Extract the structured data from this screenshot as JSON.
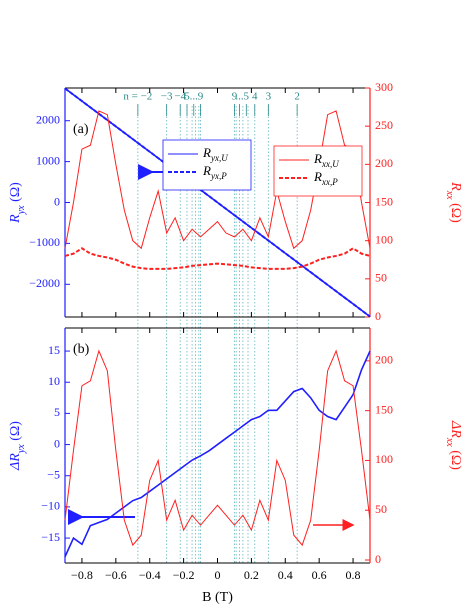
{
  "chart_data": [
    {
      "type": "line",
      "panel_label": "(a)",
      "x": [
        -0.9,
        -0.85,
        -0.8,
        -0.75,
        -0.7,
        -0.65,
        -0.6,
        -0.55,
        -0.5,
        -0.45,
        -0.4,
        -0.35,
        -0.3,
        -0.25,
        -0.2,
        -0.15,
        -0.1,
        -0.05,
        0,
        0.05,
        0.1,
        0.15,
        0.2,
        0.25,
        0.3,
        0.35,
        0.4,
        0.45,
        0.5,
        0.55,
        0.6,
        0.65,
        0.7,
        0.75,
        0.8,
        0.85,
        0.9
      ],
      "xlim": [
        -0.9,
        0.9
      ],
      "xticks": [
        -0.8,
        -0.6,
        -0.4,
        -0.2,
        0,
        0.2,
        0.4,
        0.6,
        0.8
      ],
      "xtick_labels": false,
      "ylim": [
        -2800,
        2800
      ],
      "yticks": [
        {
          "value": -2000,
          "label": "−2000"
        },
        {
          "value": -1000,
          "label": "−1000"
        },
        0,
        1000,
        2000
      ],
      "y2lim": [
        0,
        300
      ],
      "y2ticks": [
        0,
        50,
        100,
        150,
        200,
        250,
        300
      ],
      "ylabel": [
        "R",
        "yx",
        " (Ω)"
      ],
      "y2label": [
        "R",
        "xx",
        " (Ω)"
      ],
      "levels": [
        -0.47,
        -0.3,
        -0.22,
        -0.18,
        -0.15,
        -0.13,
        -0.11,
        -0.1,
        0.1,
        0.11,
        0.13,
        0.15,
        0.18,
        0.22,
        0.3,
        0.47
      ],
      "level_labels": [
        {
          "label": "n = −2",
          "x": -0.47
        },
        {
          "label": "−3",
          "x": -0.3
        },
        {
          "label": "−4",
          "x": -0.22
        },
        {
          "label": "5",
          "x": -0.18
        },
        {
          "label": "...",
          "x": -0.14
        },
        {
          "label": "9",
          "x": -0.1
        },
        {
          "label": "9",
          "x": 0.1
        },
        {
          "label": "...",
          "x": 0.13
        },
        {
          "label": "5",
          "x": 0.17
        },
        {
          "label": "4",
          "x": 0.22
        },
        {
          "label": "3",
          "x": 0.3
        },
        {
          "label": "2",
          "x": 0.47
        }
      ],
      "series": [
        {
          "name": "Ryx,U",
          "color": "#1f1fff",
          "dash": false,
          "axis": "y",
          "legend": 0,
          "values": [
            2790,
            2635,
            2480,
            2325,
            2170,
            2015,
            1860,
            1705,
            1550,
            1395,
            1240,
            1085,
            930,
            775,
            620,
            465,
            310,
            155,
            0,
            -155,
            -310,
            -465,
            -620,
            -775,
            -930,
            -1085,
            -1240,
            -1395,
            -1550,
            -1705,
            -1860,
            -2015,
            -2170,
            -2325,
            -2480,
            -2635,
            -2790
          ]
        },
        {
          "name": "Ryx,P",
          "color": "#1f1fff",
          "dash": true,
          "axis": "y",
          "legend": 0,
          "values": [
            2790,
            2635,
            2480,
            2325,
            2170,
            2015,
            1860,
            1705,
            1550,
            1395,
            1240,
            1085,
            930,
            775,
            620,
            465,
            310,
            155,
            0,
            -155,
            -310,
            -465,
            -620,
            -775,
            -930,
            -1085,
            -1240,
            -1395,
            -1550,
            -1705,
            -1860,
            -2015,
            -2170,
            -2325,
            -2480,
            -2635,
            -2790
          ]
        },
        {
          "name": "Rxx,U",
          "color": "#ff2020",
          "dash": false,
          "axis": "y2",
          "legend": 1,
          "values": [
            90,
            150,
            220,
            225,
            270,
            265,
            200,
            140,
            100,
            90,
            130,
            165,
            110,
            130,
            100,
            115,
            105,
            115,
            125,
            110,
            105,
            115,
            100,
            130,
            105,
            165,
            125,
            90,
            100,
            140,
            200,
            265,
            270,
            225,
            220,
            150,
            90
          ]
        },
        {
          "name": "Rxx,P",
          "color": "#ff2020",
          "dash": true,
          "axis": "y2",
          "legend": 1,
          "values": [
            80,
            83,
            90,
            83,
            80,
            78,
            75,
            70,
            66,
            64,
            63,
            63,
            63,
            64,
            65,
            67,
            68,
            69,
            70,
            69,
            68,
            67,
            65,
            64,
            63,
            63,
            63,
            64,
            66,
            70,
            75,
            78,
            80,
            83,
            90,
            83,
            80
          ]
        }
      ]
    },
    {
      "type": "line",
      "panel_label": "(b)",
      "x": [
        -0.9,
        -0.85,
        -0.8,
        -0.75,
        -0.7,
        -0.65,
        -0.6,
        -0.55,
        -0.5,
        -0.45,
        -0.4,
        -0.35,
        -0.3,
        -0.25,
        -0.2,
        -0.15,
        -0.1,
        -0.05,
        0,
        0.05,
        0.1,
        0.15,
        0.2,
        0.25,
        0.3,
        0.35,
        0.4,
        0.45,
        0.5,
        0.55,
        0.6,
        0.65,
        0.7,
        0.75,
        0.8,
        0.85,
        0.9
      ],
      "xlim": [
        -0.9,
        0.9
      ],
      "xticks": [
        {
          "value": -0.8,
          "label": "−0.8"
        },
        {
          "value": -0.6,
          "label": "−0.6"
        },
        {
          "value": -0.4,
          "label": "−0.4"
        },
        {
          "value": -0.2,
          "label": "−0.2"
        },
        0,
        0.2,
        0.4,
        0.6,
        0.8
      ],
      "xtick_labels": true,
      "xlabel": "B (T)",
      "ylim": [
        -19,
        18.7
      ],
      "yticks": [
        {
          "value": -15,
          "label": "−15"
        },
        {
          "value": -10,
          "label": "−10"
        },
        {
          "value": -5,
          "label": "−5"
        },
        0,
        5,
        10,
        15
      ],
      "y2lim": [
        -3,
        233
      ],
      "y2ticks": [
        0,
        50,
        100,
        150,
        200
      ],
      "ylabel": [
        "ΔR",
        "yx",
        " (Ω)"
      ],
      "y2label": [
        "ΔR",
        "xx",
        " (Ω)"
      ],
      "series": [
        {
          "color": "#1f1fff",
          "axis": "y",
          "values": [
            -18,
            -15,
            -16,
            -13,
            -12.5,
            -12,
            -11,
            -10,
            -9,
            -8.5,
            -7.5,
            -6.5,
            -5.5,
            -4.5,
            -3.5,
            -2.5,
            -1.8,
            -1,
            0,
            1,
            2,
            3,
            4,
            4.5,
            5.5,
            5.5,
            7,
            8.5,
            9,
            7.5,
            5.5,
            4.5,
            4,
            6,
            8,
            12,
            15
          ]
        },
        {
          "color": "#ff2020",
          "axis": "y2",
          "values": [
            40,
            110,
            175,
            180,
            210,
            190,
            110,
            40,
            15,
            25,
            80,
            100,
            40,
            60,
            30,
            45,
            35,
            45,
            55,
            45,
            35,
            45,
            30,
            60,
            40,
            100,
            80,
            25,
            15,
            40,
            110,
            190,
            210,
            180,
            175,
            110,
            40
          ]
        }
      ]
    }
  ]
}
